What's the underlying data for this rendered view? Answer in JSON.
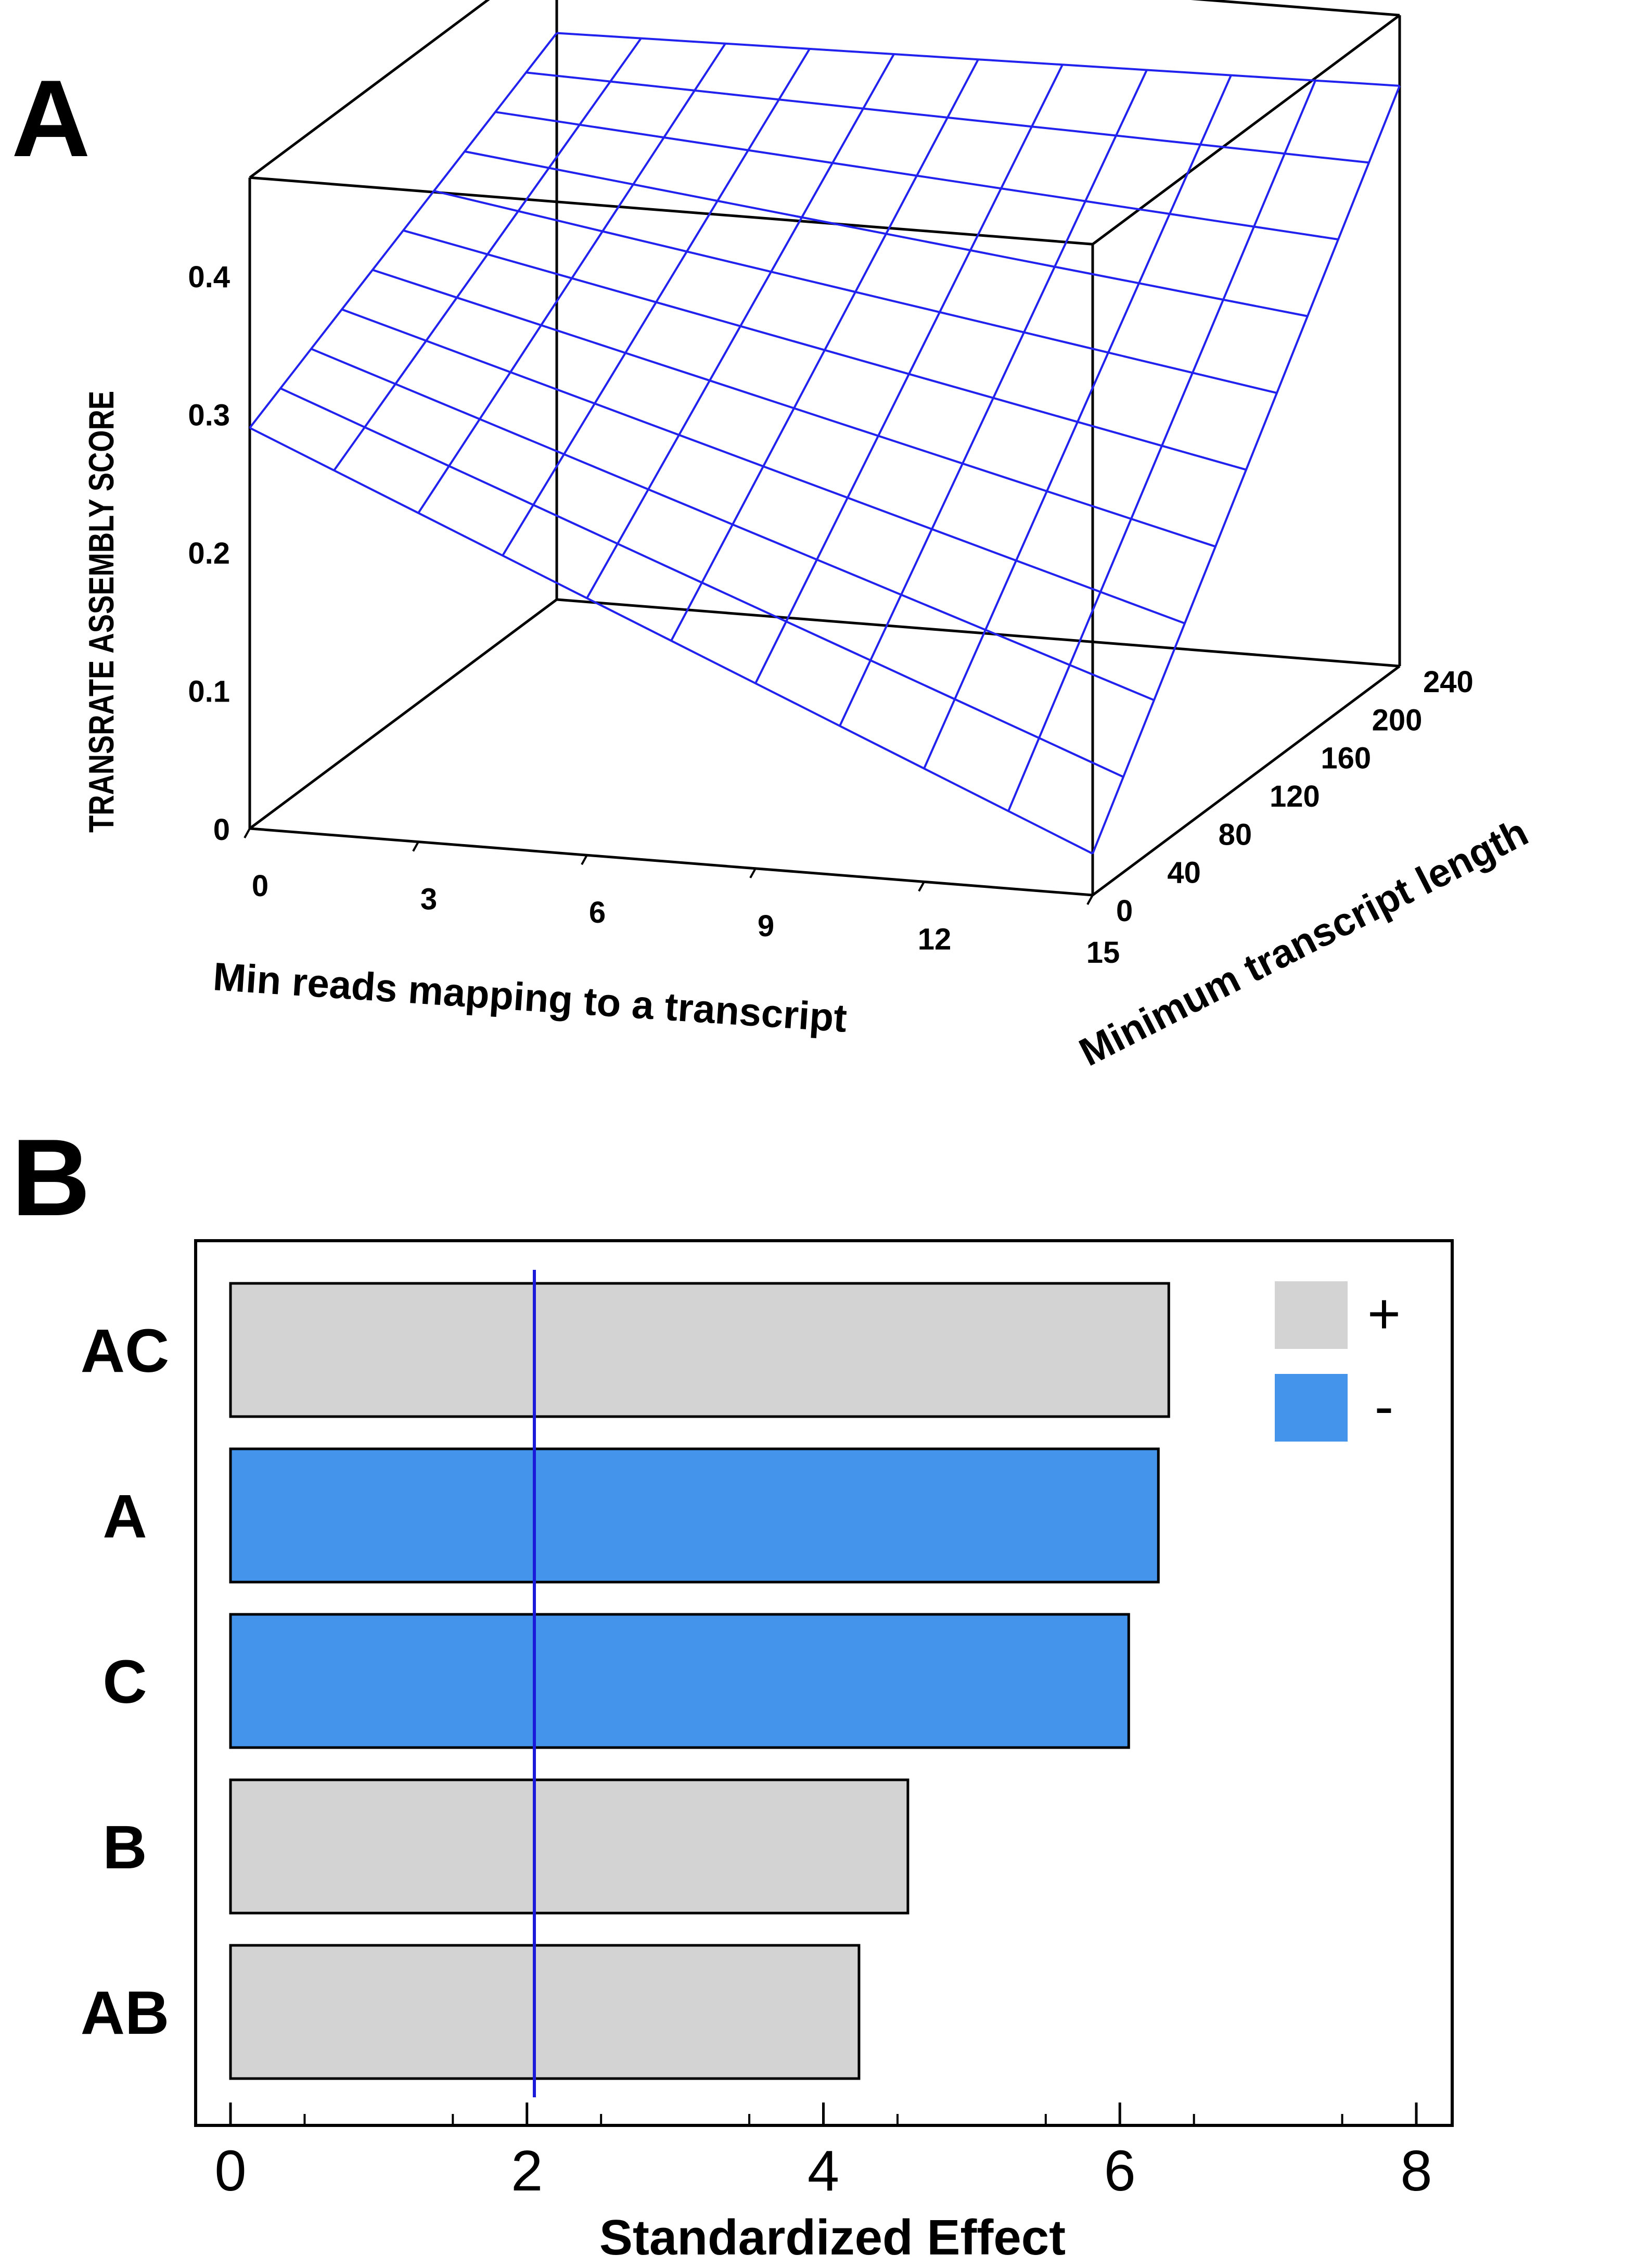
{
  "panels": {
    "a_letter": "A",
    "b_letter": "B"
  },
  "chart_data": [
    {
      "type": "surface",
      "panel": "A",
      "zlabel": "TRANSRATE ASSEMBLY SCORE",
      "xlabel": "Min reads mapping to a transcript",
      "ylabel": "Minimum  transcript length",
      "x_ticks": [
        "0",
        "3",
        "6",
        "9",
        "12",
        "15"
      ],
      "y_ticks": [
        "0",
        "40",
        "80",
        "120",
        "160",
        "200",
        "240"
      ],
      "z_ticks": [
        "0",
        "0.1",
        "0.2",
        "0.3",
        "0.4"
      ],
      "xlim": [
        0,
        15
      ],
      "ylim": [
        0,
        240
      ],
      "zlim": [
        0,
        0.4
      ],
      "grid_lines": 11,
      "corners": {
        "x0_y0": 0.29,
        "x15_y0": 0.03,
        "x0_y240": 0.41,
        "x15_y240": 0.42
      },
      "mesh_color": "#2222ee"
    },
    {
      "type": "bar",
      "orientation": "horizontal",
      "panel": "B",
      "categories": [
        "AC",
        "A",
        "C",
        "B",
        "AB"
      ],
      "values": [
        6.33,
        6.26,
        6.06,
        4.57,
        4.24
      ],
      "signs": [
        "+",
        "-",
        "-",
        "+",
        "+"
      ],
      "xlabel": "Standardized Effect",
      "xlim": [
        0,
        8
      ],
      "x_ticks": [
        "0",
        "2",
        "4",
        "6",
        "8"
      ],
      "reference_line": 2.05,
      "reference_color": "#1a1adb",
      "legend": [
        {
          "symbol": "+",
          "color": "#d3d3d3"
        },
        {
          "symbol": "-",
          "color": "#4394ea"
        }
      ],
      "legend_position": "top-right"
    }
  ]
}
